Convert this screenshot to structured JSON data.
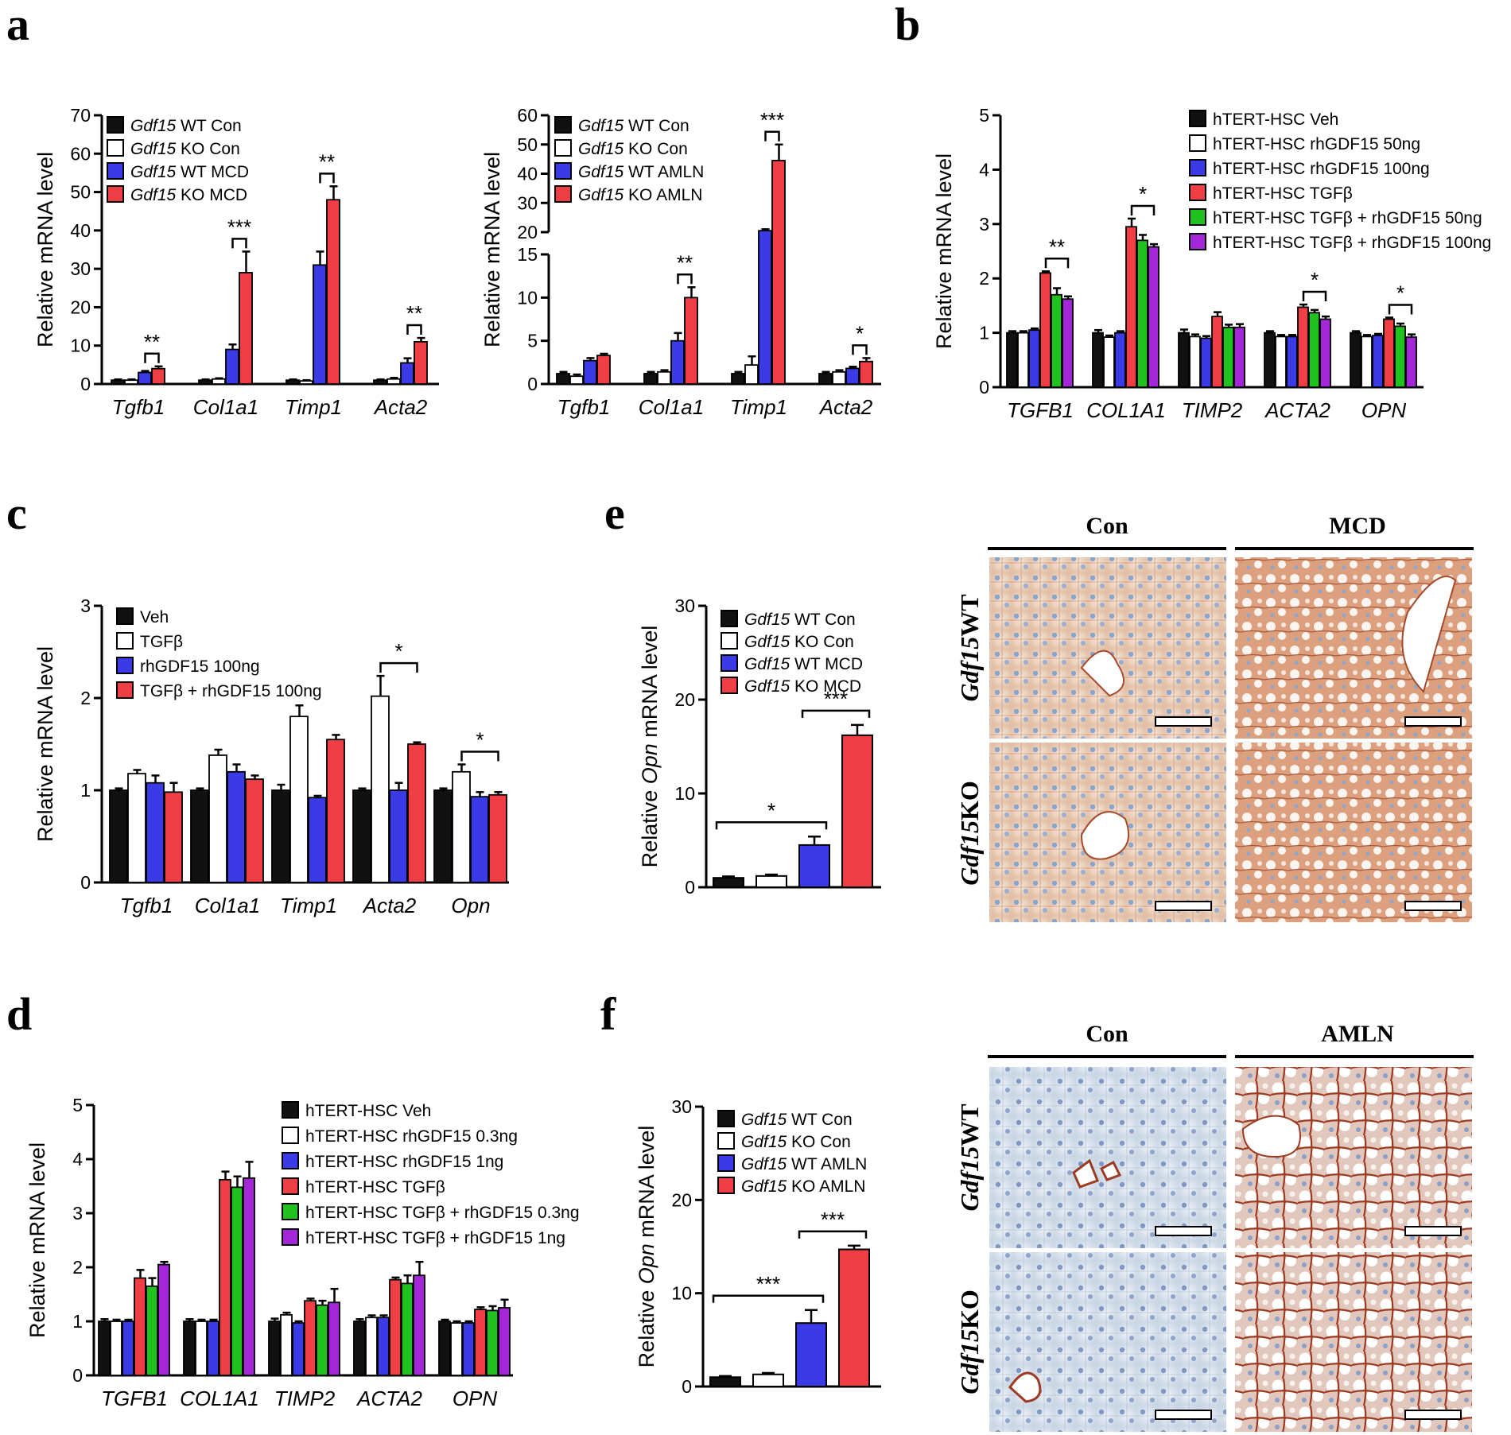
{
  "colors": {
    "black": "#111111",
    "white": "#ffffff",
    "blue": "#3a3ae6",
    "red": "#ef3e44",
    "green": "#1fc21f",
    "purple": "#a326d8"
  },
  "panel_labels": [
    "a",
    "b",
    "c",
    "d",
    "e",
    "f"
  ],
  "chart_data": [
    {
      "id": "a1",
      "type": "bar",
      "panel": "a",
      "ylabel": "Relative mRNA level",
      "ylim": [
        0,
        70
      ],
      "yticks": [
        0,
        10,
        20,
        30,
        40,
        50,
        60,
        70
      ],
      "categories": [
        "Tgfb1",
        "Col1a1",
        "Timp1",
        "Acta2"
      ],
      "series": [
        {
          "name_italic": "Gdf15",
          "name_rest": " WT Con",
          "color": "black",
          "values": [
            1,
            1,
            1,
            1
          ],
          "errors": [
            0.2,
            0.2,
            0.2,
            0.2
          ]
        },
        {
          "name_italic": "Gdf15",
          "name_rest": " KO Con",
          "color": "white",
          "values": [
            1,
            1.3,
            0.8,
            1.3
          ],
          "errors": [
            0.2,
            0.2,
            0.2,
            0.3
          ]
        },
        {
          "name_italic": "Gdf15",
          "name_rest": " WT MCD",
          "color": "blue",
          "values": [
            3,
            9,
            31,
            5.5
          ],
          "errors": [
            0.4,
            1.3,
            3.5,
            1.2
          ]
        },
        {
          "name_italic": "Gdf15",
          "name_rest": " KO MCD",
          "color": "red",
          "values": [
            4,
            29,
            48,
            11
          ],
          "errors": [
            0.6,
            5.5,
            3.5,
            1
          ]
        }
      ],
      "significance": [
        {
          "cat": 0,
          "label": "**"
        },
        {
          "cat": 1,
          "label": "***"
        },
        {
          "cat": 2,
          "label": "**"
        },
        {
          "cat": 3,
          "label": "**"
        }
      ]
    },
    {
      "id": "a2",
      "type": "bar",
      "panel": "a",
      "broken_axis": true,
      "ylabel": "Relative mRNA level",
      "ylim": [
        0,
        60
      ],
      "yticks_lower": [
        0,
        5,
        10,
        15
      ],
      "yticks_upper": [
        20,
        30,
        40,
        50,
        60
      ],
      "categories": [
        "Tgfb1",
        "Col1a1",
        "Timp1",
        "Acta2"
      ],
      "series": [
        {
          "name_italic": "Gdf15",
          "name_rest": " WT Con",
          "color": "black",
          "values": [
            1.2,
            1.2,
            1.2,
            1.2
          ],
          "errors": [
            0.2,
            0.2,
            0.2,
            0.2
          ]
        },
        {
          "name_italic": "Gdf15",
          "name_rest": " KO Con",
          "color": "white",
          "values": [
            0.9,
            1.4,
            2.2,
            1.4
          ],
          "errors": [
            0.2,
            0.2,
            1,
            0.2
          ]
        },
        {
          "name_italic": "Gdf15",
          "name_rest": " WT AMLN",
          "color": "blue",
          "values": [
            2.7,
            5,
            20.5,
            1.8
          ],
          "errors": [
            0.3,
            0.9,
            0.5,
            0.2
          ]
        },
        {
          "name_italic": "Gdf15",
          "name_rest": " KO AMLN",
          "color": "red",
          "values": [
            3.3,
            10,
            44.5,
            2.6
          ],
          "errors": [
            0.2,
            1.2,
            5.5,
            0.4
          ]
        }
      ],
      "significance": [
        {
          "cat": 1,
          "label": "**"
        },
        {
          "cat": 2,
          "label": "***"
        },
        {
          "cat": 3,
          "label": "*"
        }
      ]
    },
    {
      "id": "b",
      "type": "bar",
      "panel": "b",
      "ylabel": "Relative mRNA level",
      "ylim": [
        0,
        5
      ],
      "yticks": [
        0,
        1,
        2,
        3,
        4,
        5
      ],
      "categories": [
        "TGFB1",
        "COL1A1",
        "TIMP2",
        "ACTA2",
        "OPN"
      ],
      "series": [
        {
          "name_rest": "hTERT-HSC Veh",
          "color": "black",
          "values": [
            1,
            1,
            1,
            1,
            1
          ],
          "errors": [
            0.03,
            0.05,
            0.06,
            0.03,
            0.03
          ]
        },
        {
          "name_rest": "hTERT-HSC rhGDF15 50ng",
          "color": "white",
          "values": [
            1,
            0.92,
            0.93,
            0.93,
            0.93
          ],
          "errors": [
            0.03,
            0.03,
            0.04,
            0.03,
            0.03
          ]
        },
        {
          "name_rest": "hTERT-HSC rhGDF15 100ng",
          "color": "blue",
          "values": [
            1.05,
            1,
            0.9,
            0.93,
            0.95
          ],
          "errors": [
            0.03,
            0.03,
            0.04,
            0.03,
            0.03
          ]
        },
        {
          "name_rest": "hTERT-HSC TGFβ",
          "color": "red",
          "values": [
            2.1,
            2.95,
            1.3,
            1.47,
            1.25
          ],
          "errors": [
            0.03,
            0.15,
            0.08,
            0.05,
            0.03
          ]
        },
        {
          "name_rest": "hTERT-HSC TGFβ + rhGDF15 50ng",
          "color": "green",
          "values": [
            1.7,
            2.7,
            1.1,
            1.37,
            1.12
          ],
          "errors": [
            0.12,
            0.1,
            0.05,
            0.05,
            0.05
          ]
        },
        {
          "name_rest": "hTERT-HSC TGFβ + rhGDF15 100ng",
          "color": "purple",
          "values": [
            1.62,
            2.58,
            1.1,
            1.25,
            0.92
          ],
          "errors": [
            0.05,
            0.05,
            0.06,
            0.05,
            0.05
          ]
        }
      ],
      "significance": [
        {
          "cat": 0,
          "label": "**"
        },
        {
          "cat": 1,
          "label": "*"
        },
        {
          "cat": 3,
          "label": "*"
        },
        {
          "cat": 4,
          "label": "*"
        }
      ]
    },
    {
      "id": "c",
      "type": "bar",
      "panel": "c",
      "ylabel": "Relative mRNA level",
      "ylim": [
        0,
        3
      ],
      "yticks": [
        0,
        1,
        2,
        3
      ],
      "categories": [
        "Tgfb1",
        "Col1a1",
        "Timp1",
        "Acta2",
        "Opn"
      ],
      "series": [
        {
          "name_rest": "Veh",
          "color": "black",
          "values": [
            1,
            1,
            1,
            1,
            1
          ],
          "errors": [
            0.02,
            0.02,
            0.06,
            0.02,
            0.02
          ]
        },
        {
          "name_rest": "TGFβ",
          "color": "white",
          "values": [
            1.18,
            1.38,
            1.8,
            2.02,
            1.2
          ],
          "errors": [
            0.04,
            0.06,
            0.12,
            0.22,
            0.08
          ]
        },
        {
          "name_rest": "rhGDF15 100ng",
          "color": "blue",
          "values": [
            1.08,
            1.2,
            0.92,
            1,
            0.93
          ],
          "errors": [
            0.08,
            0.08,
            0.02,
            0.08,
            0.05
          ]
        },
        {
          "name_rest": "TGFβ + rhGDF15 100ng",
          "color": "red",
          "values": [
            0.98,
            1.12,
            1.55,
            1.5,
            0.95
          ],
          "errors": [
            0.1,
            0.04,
            0.05,
            0.02,
            0.03
          ]
        }
      ],
      "significance": [
        {
          "cat": 3,
          "label": "*"
        },
        {
          "cat": 4,
          "label": "*"
        }
      ]
    },
    {
      "id": "d",
      "type": "bar",
      "panel": "d",
      "ylabel": "Relative mRNA level",
      "ylim": [
        0,
        5
      ],
      "yticks": [
        0,
        1,
        2,
        3,
        4,
        5
      ],
      "categories": [
        "TGFB1",
        "COL1A1",
        "TIMP2",
        "ACTA2",
        "OPN"
      ],
      "series": [
        {
          "name_rest": "hTERT-HSC Veh",
          "color": "black",
          "values": [
            1,
            1,
            1,
            1,
            1
          ],
          "errors": [
            0.04,
            0.04,
            0.05,
            0.04,
            0.03
          ]
        },
        {
          "name_rest": "hTERT-HSC rhGDF15 0.3ng",
          "color": "white",
          "values": [
            1,
            1,
            1.12,
            1.07,
            0.97
          ],
          "errors": [
            0.03,
            0.03,
            0.04,
            0.04,
            0.03
          ]
        },
        {
          "name_rest": "hTERT-HSC rhGDF15 1ng",
          "color": "blue",
          "values": [
            1,
            1,
            0.97,
            1.07,
            0.97
          ],
          "errors": [
            0.03,
            0.03,
            0.03,
            0.04,
            0.03
          ]
        },
        {
          "name_rest": "hTERT-HSC TGFβ",
          "color": "red",
          "values": [
            1.8,
            3.62,
            1.38,
            1.77,
            1.22
          ],
          "errors": [
            0.15,
            0.15,
            0.04,
            0.04,
            0.04
          ]
        },
        {
          "name_rest": "hTERT-HSC TGFβ + rhGDF15 0.3ng",
          "color": "green",
          "values": [
            1.65,
            3.48,
            1.3,
            1.7,
            1.2
          ],
          "errors": [
            0.15,
            0.2,
            0.08,
            0.15,
            0.08
          ]
        },
        {
          "name_rest": "hTERT-HSC TGFβ + rhGDF15 1ng",
          "color": "purple",
          "values": [
            2.05,
            3.65,
            1.35,
            1.85,
            1.25
          ],
          "errors": [
            0.05,
            0.3,
            0.25,
            0.25,
            0.15
          ]
        }
      ],
      "significance": []
    },
    {
      "id": "e",
      "type": "bar",
      "panel": "e",
      "grouped": false,
      "ylabel_pre": "Relative ",
      "ylabel_italic": "Opn",
      "ylabel_post": " mRNA level",
      "ylim": [
        0,
        30
      ],
      "yticks": [
        0,
        10,
        20,
        30
      ],
      "series": [
        {
          "name_italic": "Gdf15",
          "name_rest": " WT Con",
          "color": "black",
          "value": 1,
          "error": 0.15
        },
        {
          "name_italic": "Gdf15",
          "name_rest": " KO Con",
          "color": "white",
          "value": 1.2,
          "error": 0.15
        },
        {
          "name_italic": "Gdf15",
          "name_rest": " WT MCD",
          "color": "blue",
          "value": 4.5,
          "error": 0.9
        },
        {
          "name_italic": "Gdf15",
          "name_rest": " KO MCD",
          "color": "red",
          "value": 16.2,
          "error": 1.1
        }
      ],
      "significance": [
        {
          "from": 0,
          "to": 2,
          "label": "*"
        },
        {
          "from": 2,
          "to": 3,
          "label": "***"
        }
      ]
    },
    {
      "id": "f",
      "type": "bar",
      "panel": "f",
      "grouped": false,
      "ylabel_pre": "Relative ",
      "ylabel_italic": "Opn",
      "ylabel_post": " mRNA level",
      "ylim": [
        0,
        30
      ],
      "yticks": [
        0,
        10,
        20,
        30
      ],
      "series": [
        {
          "name_italic": "Gdf15",
          "name_rest": " WT Con",
          "color": "black",
          "value": 1,
          "error": 0.12
        },
        {
          "name_italic": "Gdf15",
          "name_rest": " KO Con",
          "color": "white",
          "value": 1.3,
          "error": 0.15
        },
        {
          "name_italic": "Gdf15",
          "name_rest": " WT AMLN",
          "color": "blue",
          "value": 6.8,
          "error": 1.4
        },
        {
          "name_italic": "Gdf15",
          "name_rest": " KO AMLN",
          "color": "red",
          "value": 14.7,
          "error": 0.4
        }
      ],
      "significance": [
        {
          "from": 0,
          "to": 2,
          "label": "***"
        },
        {
          "from": 2,
          "to": 3,
          "label": "***"
        }
      ]
    }
  ],
  "histology": [
    {
      "panel": "e",
      "col_headers": [
        "Con",
        "MCD"
      ],
      "row_italic": "Gdf15",
      "row_labels": [
        "WT",
        "KO"
      ],
      "pattern": [
        "mild",
        "steatosis"
      ]
    },
    {
      "panel": "f",
      "col_headers": [
        "Con",
        "AMLN"
      ],
      "row_italic": "Gdf15",
      "row_labels": [
        "WT",
        "KO"
      ],
      "pattern": [
        "clear",
        "steatosis-heavy"
      ]
    }
  ]
}
